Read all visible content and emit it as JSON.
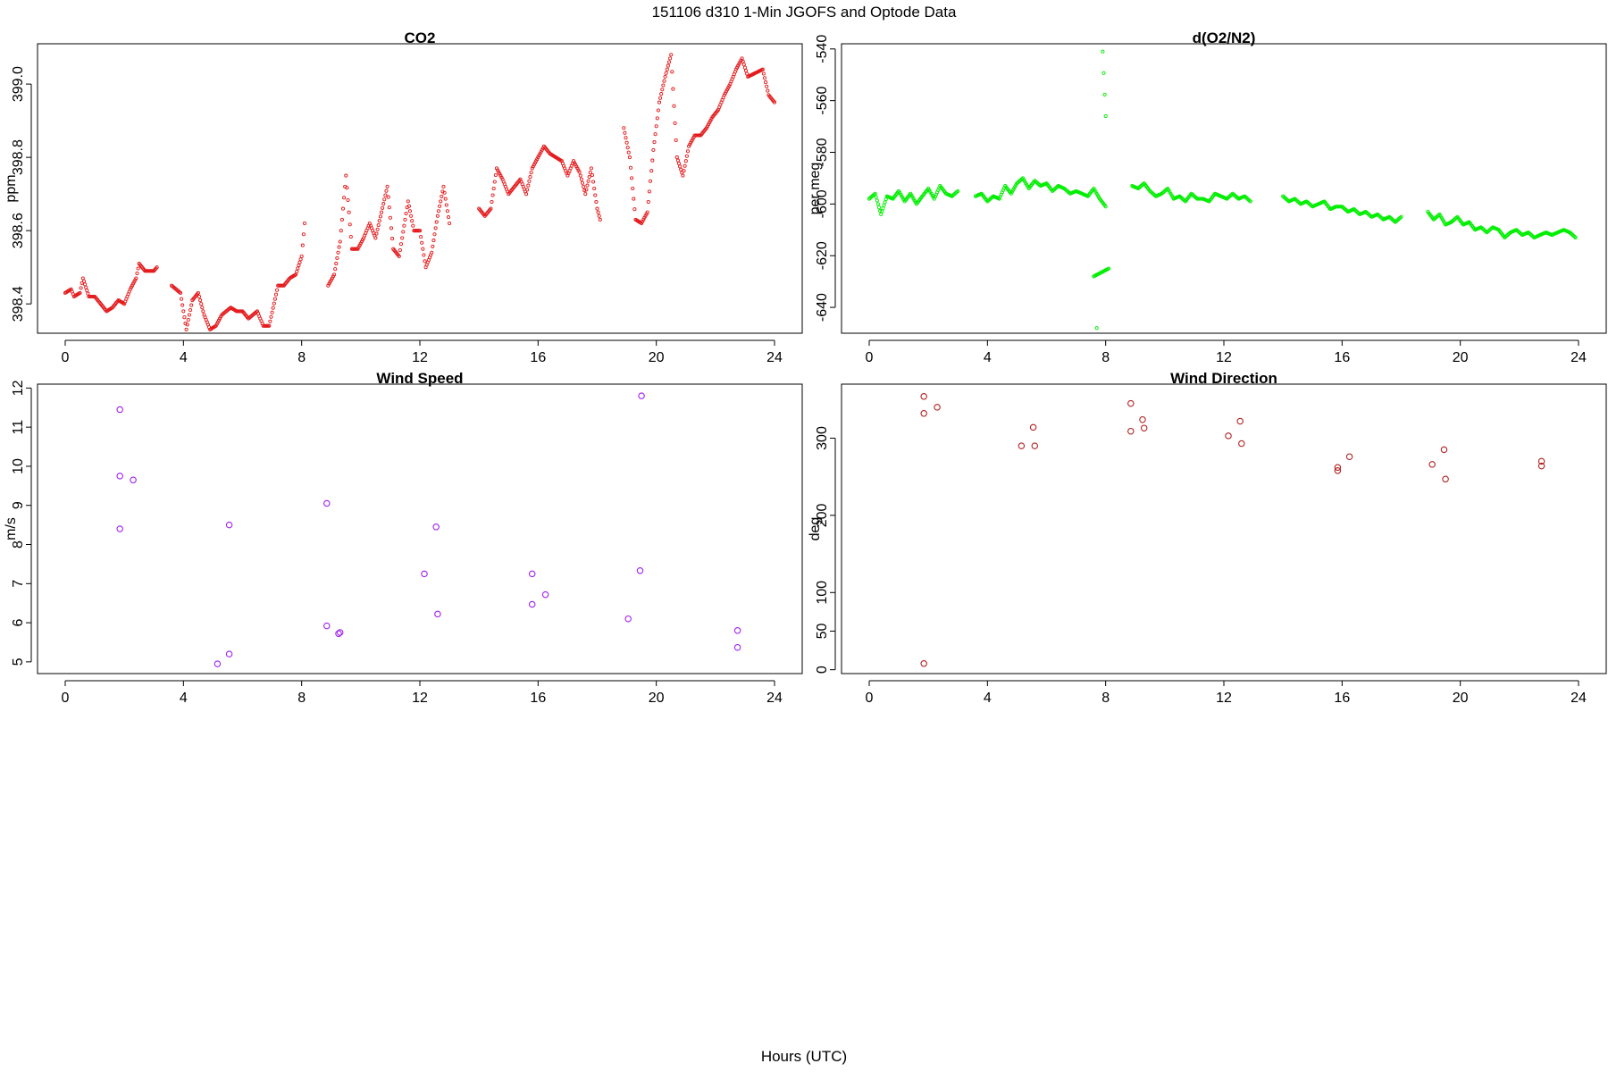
{
  "page": {
    "suptitle": "151106   d310   1-Min  JGOFS and Optode Data",
    "xlabel": "Hours (UTC)"
  },
  "chart_data": [
    {
      "id": "co2",
      "type": "scatter",
      "title": "CO2",
      "ylabel": "ppm",
      "color": "#e41a1c",
      "marker": "small-circle",
      "xlim": [
        0,
        24
      ],
      "ylim": [
        398.32,
        399.11
      ],
      "xticks": [
        0,
        4,
        8,
        12,
        16,
        20,
        24
      ],
      "yticks": [
        398.4,
        398.6,
        398.8,
        399.0
      ],
      "ytick_labels": [
        "398.4",
        "398.6",
        "398.8",
        "399.0"
      ],
      "segments": [
        {
          "x": [
            0.0,
            0.2,
            0.3,
            0.5,
            0.6,
            0.8,
            1.0,
            1.2,
            1.4,
            1.6,
            1.8,
            2.0,
            2.2,
            2.4,
            2.5,
            2.7,
            2.8,
            3.0,
            3.1
          ],
          "y": [
            398.43,
            398.44,
            398.42,
            398.43,
            398.47,
            398.42,
            398.42,
            398.4,
            398.38,
            398.39,
            398.41,
            398.4,
            398.44,
            398.47,
            398.51,
            398.49,
            398.49,
            398.49,
            398.5
          ]
        },
        {
          "x": [
            3.6,
            3.9,
            4.1,
            4.3,
            4.5,
            4.7,
            4.9,
            5.1,
            5.3,
            5.6,
            5.8,
            6.0,
            6.2,
            6.5,
            6.7,
            6.9,
            7.2,
            7.4,
            7.6,
            7.8,
            8.0,
            8.1
          ],
          "y": [
            398.45,
            398.43,
            398.33,
            398.41,
            398.43,
            398.37,
            398.33,
            398.34,
            398.37,
            398.39,
            398.38,
            398.38,
            398.36,
            398.38,
            398.34,
            398.34,
            398.45,
            398.45,
            398.47,
            398.48,
            398.53,
            398.62
          ]
        },
        {
          "x": [
            8.9,
            9.1,
            9.3,
            9.5,
            9.7,
            9.9,
            10.1,
            10.3,
            10.5,
            10.7,
            10.9,
            11.1,
            11.3,
            11.6,
            11.8,
            12.0,
            12.2,
            12.4,
            12.6,
            12.8,
            13.0
          ],
          "y": [
            398.45,
            398.48,
            398.57,
            398.75,
            398.55,
            398.55,
            398.58,
            398.62,
            398.58,
            398.65,
            398.72,
            398.55,
            398.53,
            398.68,
            398.6,
            398.6,
            398.5,
            398.54,
            398.64,
            398.72,
            398.62
          ]
        },
        {
          "x": [
            14.0,
            14.2,
            14.4,
            14.6,
            14.8,
            15.0,
            15.2,
            15.4,
            15.6,
            15.8,
            16.0,
            16.2,
            16.4,
            16.6,
            16.8,
            17.0,
            17.2,
            17.4,
            17.6,
            17.8,
            18.0,
            18.1
          ],
          "y": [
            398.66,
            398.64,
            398.66,
            398.77,
            398.74,
            398.7,
            398.72,
            398.74,
            398.7,
            398.77,
            398.8,
            398.83,
            398.81,
            398.8,
            398.79,
            398.75,
            398.79,
            398.76,
            398.7,
            398.77,
            398.66,
            398.63
          ]
        },
        {
          "x": [
            18.9,
            19.1,
            19.3,
            19.5,
            19.7,
            19.9,
            20.1,
            20.3,
            20.5,
            20.7,
            20.9,
            21.1,
            21.3,
            21.5,
            21.7,
            21.9,
            22.1,
            22.3,
            22.5,
            22.7,
            22.9,
            23.1,
            23.6,
            23.8,
            24.0
          ],
          "y": [
            398.88,
            398.8,
            398.63,
            398.62,
            398.65,
            398.82,
            398.95,
            399.02,
            399.08,
            398.8,
            398.75,
            398.83,
            398.86,
            398.86,
            398.88,
            398.91,
            398.93,
            398.97,
            399.0,
            399.04,
            399.07,
            399.02,
            399.04,
            398.97,
            398.95
          ]
        }
      ]
    },
    {
      "id": "o2n2",
      "type": "scatter",
      "title": "d(O2/N2)",
      "ylabel": "per meg",
      "color": "#00ee00",
      "marker": "small-circle",
      "xlim": [
        0,
        24
      ],
      "ylim": [
        -650,
        -538
      ],
      "xticks": [
        0,
        4,
        8,
        12,
        16,
        20,
        24
      ],
      "yticks": [
        -540,
        -560,
        -580,
        -600,
        -620,
        -640
      ],
      "ytick_labels": [
        "-540",
        "-560",
        "-580",
        "-600",
        "-620",
        "-640"
      ],
      "segments": [
        {
          "x": [
            0.0,
            0.2,
            0.4,
            0.6,
            0.8,
            1.0,
            1.2,
            1.4,
            1.6,
            1.8,
            2.0,
            2.2,
            2.4,
            2.6,
            2.8,
            3.0
          ],
          "y": [
            -598,
            -596,
            -604,
            -597,
            -598,
            -595,
            -599,
            -596,
            -600,
            -597,
            -594,
            -598,
            -593,
            -596,
            -597,
            -595
          ]
        },
        {
          "x": [
            3.6,
            3.8,
            4.0,
            4.2,
            4.4,
            4.6,
            4.8,
            5.0,
            5.2,
            5.4,
            5.6,
            5.8,
            6.0,
            6.2,
            6.4,
            6.6,
            6.8,
            7.0,
            7.2,
            7.4,
            7.6,
            7.8,
            8.0
          ],
          "y": [
            -597,
            -596,
            -599,
            -597,
            -598,
            -593,
            -596,
            -592,
            -590,
            -594,
            -591,
            -593,
            -592,
            -595,
            -593,
            -594,
            -596,
            -595,
            -596,
            -597,
            -594,
            -598,
            -601
          ]
        },
        {
          "x": [
            7.9,
            8.0,
            7.6,
            8.1,
            7.7
          ],
          "y": [
            -541,
            -566,
            -628,
            -625,
            -648
          ]
        },
        {
          "x": [
            8.9,
            9.1,
            9.3,
            9.5,
            9.7,
            9.9,
            10.1,
            10.3,
            10.5,
            10.7,
            10.9,
            11.1,
            11.3,
            11.5,
            11.7,
            11.9,
            12.1,
            12.3,
            12.5,
            12.7,
            12.9
          ],
          "y": [
            -593,
            -594,
            -592,
            -595,
            -597,
            -596,
            -594,
            -598,
            -597,
            -599,
            -596,
            -598,
            -598,
            -599,
            -596,
            -597,
            -598,
            -596,
            -598,
            -597,
            -599
          ]
        },
        {
          "x": [
            14.0,
            14.2,
            14.4,
            14.6,
            14.8,
            15.0,
            15.2,
            15.4,
            15.6,
            15.8,
            16.0,
            16.2,
            16.4,
            16.6,
            16.8,
            17.0,
            17.2,
            17.4,
            17.6,
            17.8,
            18.0
          ],
          "y": [
            -597,
            -599,
            -598,
            -600,
            -599,
            -601,
            -600,
            -599,
            -602,
            -601,
            -601,
            -603,
            -602,
            -604,
            -603,
            -605,
            -604,
            -606,
            -605,
            -607,
            -605
          ]
        },
        {
          "x": [
            18.9,
            19.1,
            19.3,
            19.5,
            19.7,
            19.9,
            20.1,
            20.3,
            20.5,
            20.7,
            20.9,
            21.1,
            21.3,
            21.5,
            21.7,
            21.9,
            22.1,
            22.3,
            22.5,
            22.7,
            22.9,
            23.1,
            23.5,
            23.7,
            23.9
          ],
          "y": [
            -603,
            -606,
            -604,
            -608,
            -607,
            -605,
            -608,
            -607,
            -610,
            -609,
            -611,
            -609,
            -610,
            -613,
            -611,
            -610,
            -612,
            -611,
            -613,
            -612,
            -611,
            -612,
            -610,
            -611,
            -613
          ]
        }
      ]
    },
    {
      "id": "wspd",
      "type": "scatter",
      "title": "Wind Speed",
      "ylabel": "m/s",
      "color": "#a020f0",
      "marker": "circle",
      "xlim": [
        0,
        24
      ],
      "ylim": [
        4.7,
        12.1
      ],
      "xticks": [
        0,
        4,
        8,
        12,
        16,
        20,
        24
      ],
      "yticks": [
        5,
        6,
        7,
        8,
        9,
        10,
        11,
        12
      ],
      "ytick_labels": [
        "5",
        "6",
        "7",
        "8",
        "9",
        "10",
        "11",
        "12"
      ],
      "x": [
        1.85,
        1.85,
        1.85,
        2.3,
        5.15,
        5.55,
        5.55,
        8.85,
        8.85,
        9.25,
        9.3,
        12.15,
        12.55,
        12.6,
        15.8,
        15.8,
        16.25,
        19.05,
        19.45,
        19.5,
        22.75,
        22.75
      ],
      "y": [
        11.45,
        9.75,
        8.4,
        9.65,
        4.95,
        5.2,
        8.5,
        9.05,
        5.92,
        5.72,
        5.75,
        7.25,
        8.45,
        6.22,
        7.25,
        6.47,
        6.72,
        6.1,
        7.33,
        11.8,
        5.8,
        5.37
      ]
    },
    {
      "id": "wdir",
      "type": "scatter",
      "title": "Wind Direction",
      "ylabel": "deg",
      "color": "#b22222",
      "marker": "circle",
      "xlim": [
        0,
        24
      ],
      "ylim": [
        -5,
        370
      ],
      "xticks": [
        0,
        4,
        8,
        12,
        16,
        20,
        24
      ],
      "yticks": [
        0,
        50,
        100,
        200,
        300
      ],
      "ytick_labels": [
        "0",
        "50",
        "100",
        "200",
        "300"
      ],
      "x": [
        1.85,
        1.85,
        1.85,
        2.3,
        5.15,
        5.55,
        5.6,
        8.85,
        8.85,
        9.25,
        9.3,
        12.15,
        12.55,
        12.6,
        15.85,
        15.85,
        16.25,
        19.05,
        19.45,
        19.5,
        22.75,
        22.75
      ],
      "y": [
        8,
        332,
        354,
        340,
        290,
        314,
        290,
        345,
        309,
        324,
        313,
        303,
        322,
        293,
        262,
        258,
        276,
        266,
        285,
        247,
        270,
        264
      ]
    }
  ]
}
